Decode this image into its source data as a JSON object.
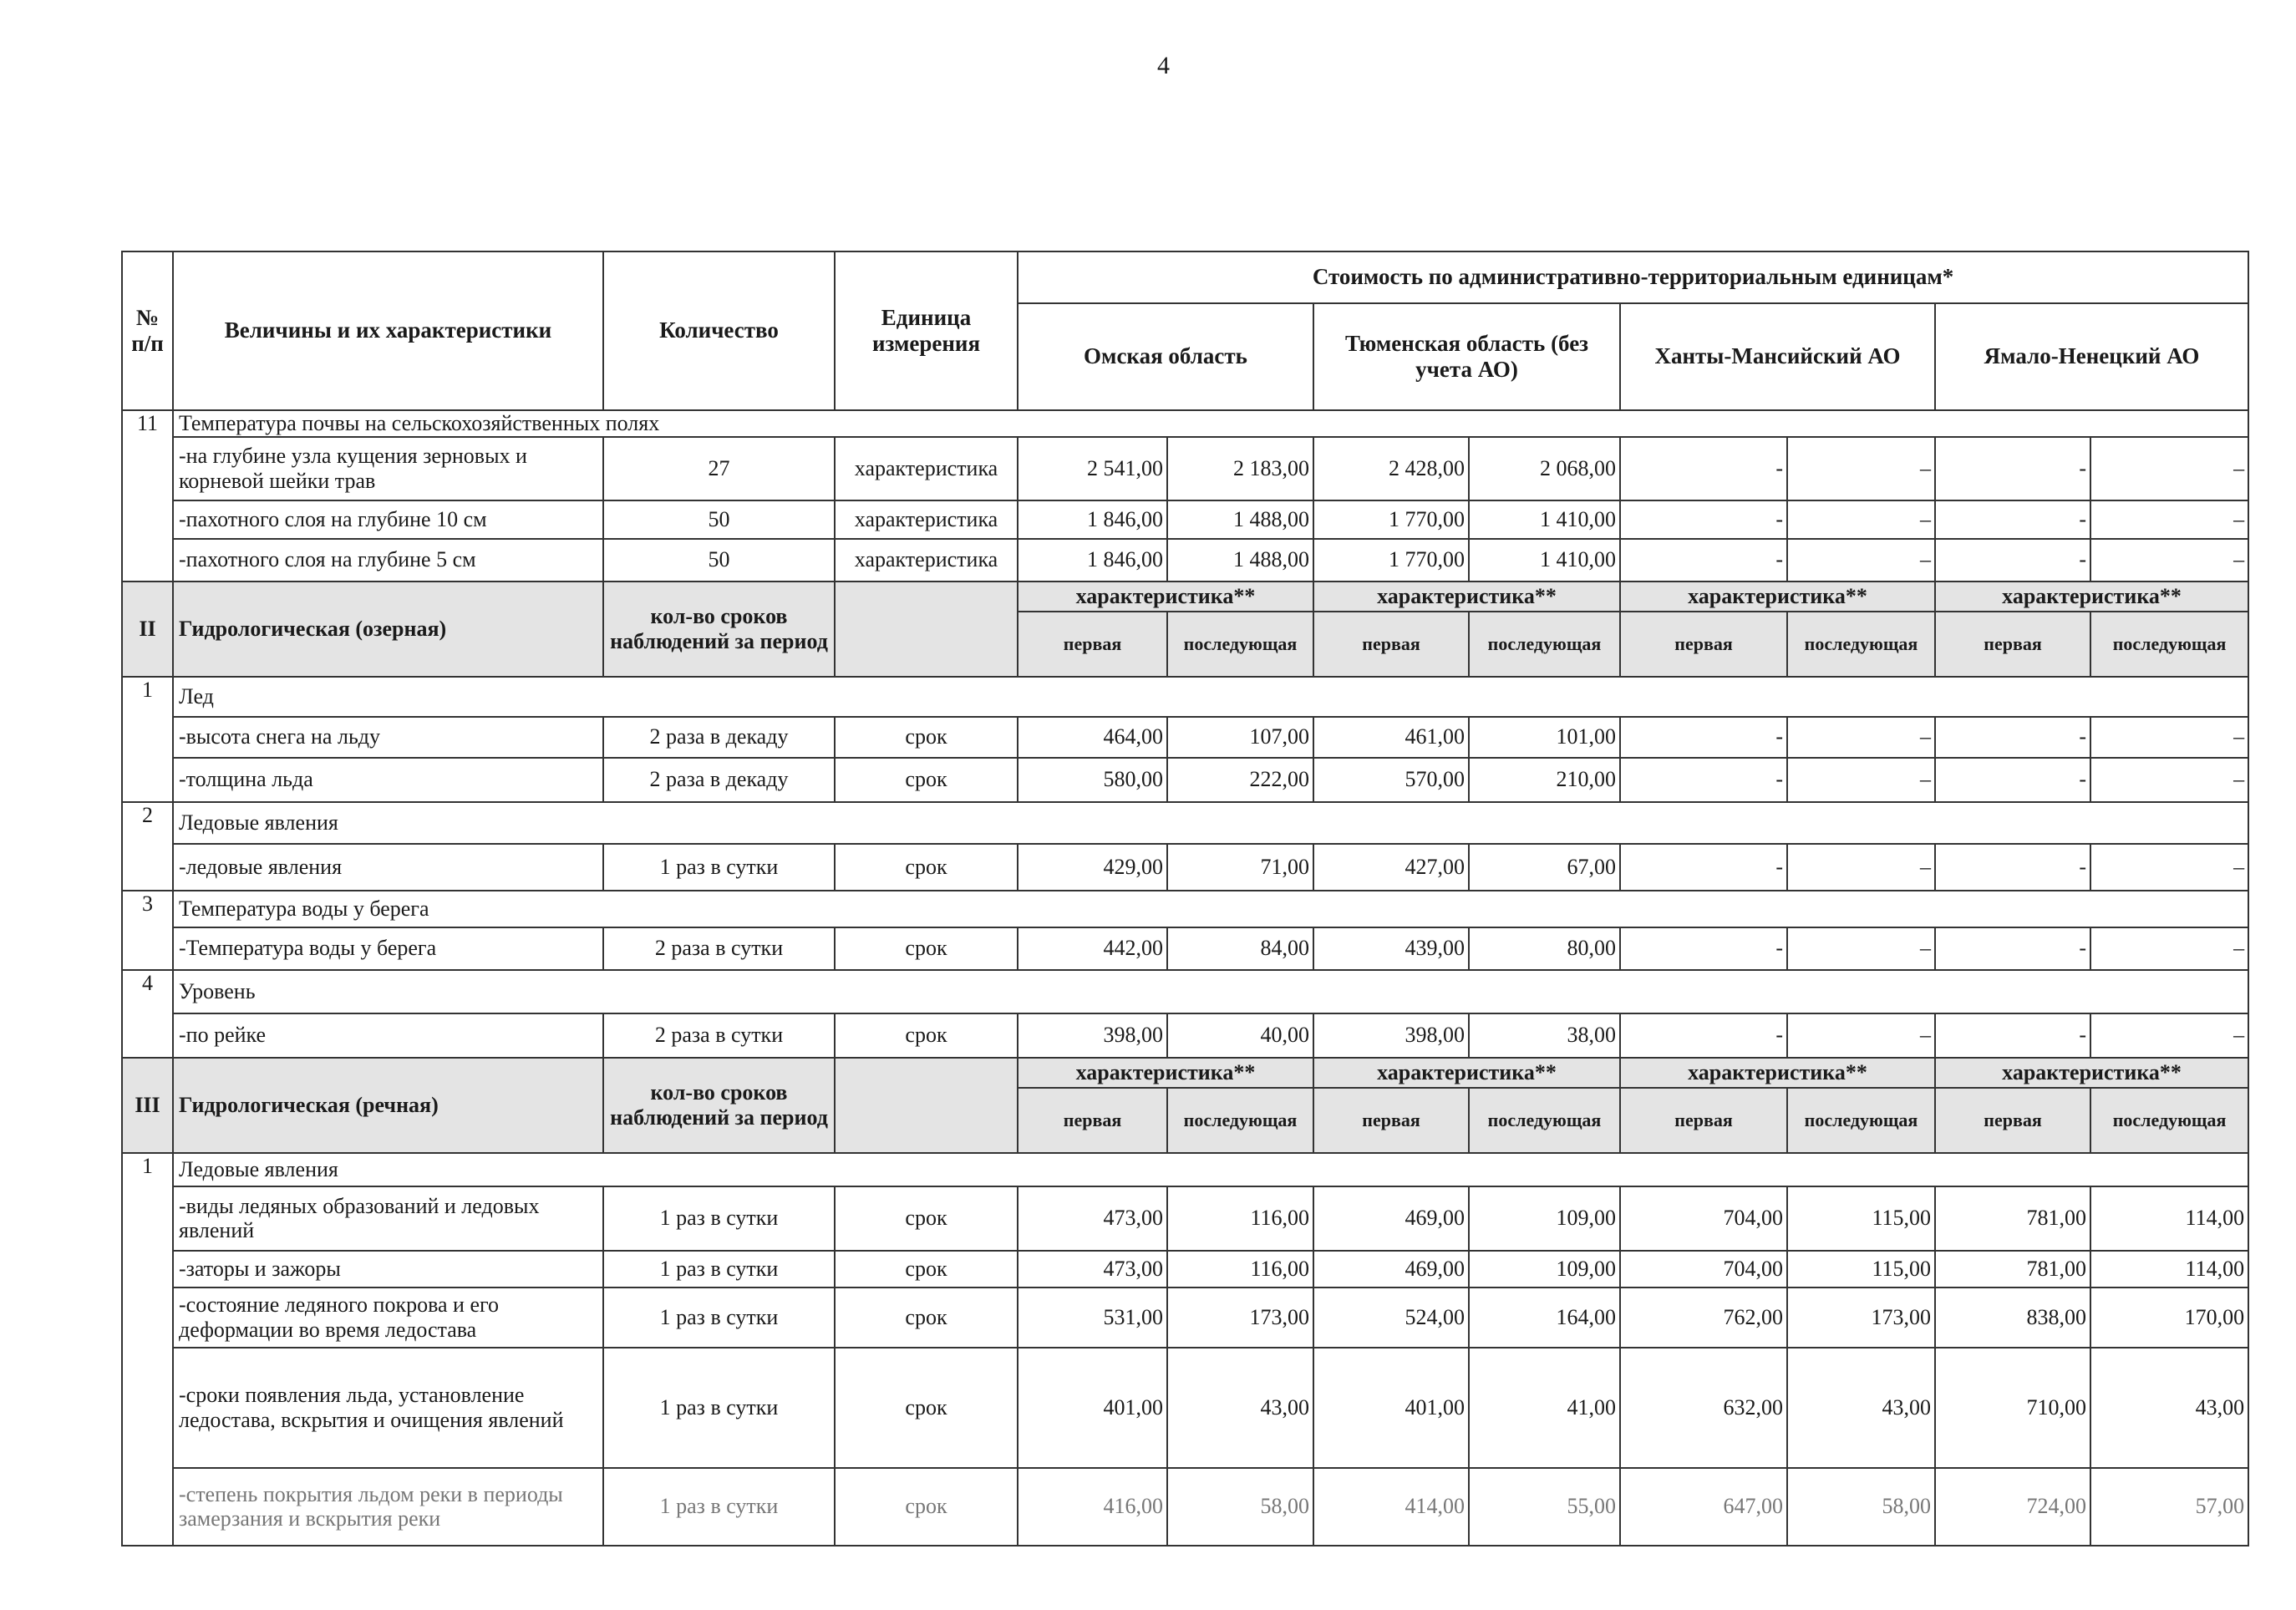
{
  "page_number": "4",
  "header": {
    "num": "№ п/п",
    "name": "Величины и их характеристики",
    "qty": "Количество",
    "unit": "Единица измерения",
    "cost": "Стоимость по административно-территориальным единицам*",
    "regions": [
      "Омская область",
      "Тюменская область (без учета АО)",
      "Ханты-Мансийский АО",
      "Ямало-Ненецкий АО"
    ]
  },
  "blocks": [
    {
      "type": "section",
      "num": "11",
      "title": "Температура почвы на сельскохозяйственных полях",
      "rows": [
        {
          "name": "-на глубине узла кущения зерновых и корневой шейки трав",
          "qty": "27",
          "unit": "характеристика",
          "values": [
            "2 541,00",
            "2 183,00",
            "2 428,00",
            "2 068,00",
            "-",
            "–",
            "-",
            "–"
          ]
        },
        {
          "name": "-пахотного слоя на глубине 10 см",
          "qty": "50",
          "unit": "характеристика",
          "values": [
            "1 846,00",
            "1 488,00",
            "1 770,00",
            "1 410,00",
            "-",
            "–",
            "-",
            "–"
          ]
        },
        {
          "name": "-пахотного слоя на глубине 5 см",
          "qty": "50",
          "unit": "характеристика",
          "values": [
            "1 846,00",
            "1 488,00",
            "1 770,00",
            "1 410,00",
            "-",
            "–",
            "-",
            "–"
          ]
        }
      ]
    },
    {
      "type": "group",
      "num": "II",
      "title": "Гидрологическая (озерная)",
      "qty_header": "кол-во сроков наблюдений за период",
      "char_label": "характеристика**",
      "first": "первая",
      "next": "последующая"
    },
    {
      "type": "section",
      "num": "1",
      "title": "Лед",
      "rows": [
        {
          "name": "-высота снега на льду",
          "qty": "2 раза в декаду",
          "unit": "срок",
          "values": [
            "464,00",
            "107,00",
            "461,00",
            "101,00",
            "-",
            "–",
            "-",
            "–"
          ]
        },
        {
          "name": "-толщина льда",
          "qty": "2 раза в декаду",
          "unit": "срок",
          "values": [
            "580,00",
            "222,00",
            "570,00",
            "210,00",
            "-",
            "–",
            "-",
            "–"
          ]
        }
      ]
    },
    {
      "type": "section",
      "num": "2",
      "title": "Ледовые явления",
      "rows": [
        {
          "name": "-ледовые явления",
          "qty": "1 раз в сутки",
          "unit": "срок",
          "values": [
            "429,00",
            "71,00",
            "427,00",
            "67,00",
            "-",
            "–",
            "-",
            "–"
          ]
        }
      ]
    },
    {
      "type": "section",
      "num": "3",
      "title": "Температура воды у берега",
      "rows": [
        {
          "name": "-Температура воды у берега",
          "qty": "2 раза в сутки",
          "unit": "срок",
          "values": [
            "442,00",
            "84,00",
            "439,00",
            "80,00",
            "-",
            "–",
            "-",
            "–"
          ]
        }
      ]
    },
    {
      "type": "section",
      "num": "4",
      "title": "Уровень",
      "rows": [
        {
          "name": "-по рейке",
          "qty": "2 раза в сутки",
          "unit": "срок",
          "values": [
            "398,00",
            "40,00",
            "398,00",
            "38,00",
            "-",
            "–",
            "-",
            "–"
          ]
        }
      ]
    },
    {
      "type": "group",
      "num": "III",
      "title": "Гидрологическая (речная)",
      "qty_header": "кол-во сроков наблюдений за период",
      "char_label": "характеристика**",
      "first": "первая",
      "next": "последующая"
    },
    {
      "type": "section",
      "num": "1",
      "title": "Ледовые явления",
      "rows": [
        {
          "name": "-виды ледяных образований и ледовых явлений",
          "qty": "1 раз в сутки",
          "unit": "срок",
          "values": [
            "473,00",
            "116,00",
            "469,00",
            "109,00",
            "704,00",
            "115,00",
            "781,00",
            "114,00"
          ]
        },
        {
          "name": "-заторы и зажоры",
          "qty": "1 раз в сутки",
          "unit": "срок",
          "values": [
            "473,00",
            "116,00",
            "469,00",
            "109,00",
            "704,00",
            "115,00",
            "781,00",
            "114,00"
          ]
        },
        {
          "name": "-состояние ледяного покрова и его деформации во время ледостава",
          "qty": "1 раз в сутки",
          "unit": "срок",
          "values": [
            "531,00",
            "173,00",
            "524,00",
            "164,00",
            "762,00",
            "173,00",
            "838,00",
            "170,00"
          ]
        },
        {
          "name": "-сроки появления льда, установление ледостава, вскрытия и очищения явлений",
          "qty": "1 раз в сутки",
          "unit": "срок",
          "values": [
            "401,00",
            "43,00",
            "401,00",
            "41,00",
            "632,00",
            "43,00",
            "710,00",
            "43,00"
          ]
        },
        {
          "name": "-степень покрытия льдом реки в периоды замерзания и вскрытия реки",
          "qty": "1 раз в сутки",
          "unit": "срок",
          "values": [
            "416,00",
            "58,00",
            "414,00",
            "55,00",
            "647,00",
            "58,00",
            "724,00",
            "57,00"
          ],
          "faded": true
        }
      ]
    }
  ]
}
